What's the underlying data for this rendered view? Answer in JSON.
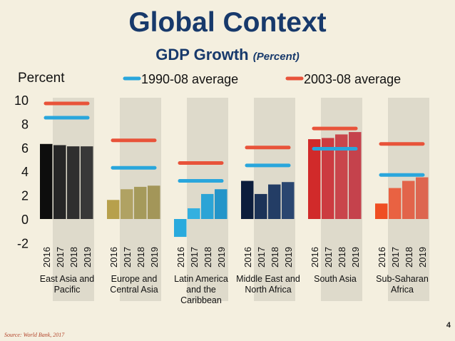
{
  "slide": {
    "title": "Global Context",
    "subtitle": "GDP Growth",
    "subtitle_unit": "(Percent)",
    "source": "Source: World Bank, 2017",
    "page_number": "4"
  },
  "chart_data": {
    "type": "bar",
    "title": "GDP Growth",
    "ylabel": "Percent",
    "ylim": [
      -2,
      10
    ],
    "yticks": [
      -2,
      0,
      2,
      4,
      6,
      8,
      10
    ],
    "years": [
      "2016",
      "2017",
      "2018",
      "2019"
    ],
    "legend": [
      {
        "name": "1990-08 average",
        "color": "#29a6dc"
      },
      {
        "name": "2003-08 average",
        "color": "#e8533a"
      }
    ],
    "legend_position": "top",
    "groups": [
      {
        "name": "East Asia and Pacific",
        "label_lines": [
          "East Asia and",
          "Pacific"
        ],
        "values": [
          6.3,
          6.2,
          6.1,
          6.1
        ],
        "avg_1990_08": 8.5,
        "avg_2003_08": 9.7,
        "colors": [
          "#0d0d0d",
          "#262626",
          "#2f2f2f",
          "#383838"
        ]
      },
      {
        "name": "Europe and Central Asia",
        "label_lines": [
          "Europe and",
          "Central Asia"
        ],
        "values": [
          1.6,
          2.5,
          2.7,
          2.8
        ],
        "avg_1990_08": 4.3,
        "avg_2003_08": 6.6,
        "colors": [
          "#b7a04c",
          "#b0a263",
          "#a59a5b",
          "#a39659"
        ]
      },
      {
        "name": "Latin America and the Caribbean",
        "label_lines": [
          "Latin America",
          "and the",
          "Caribbean"
        ],
        "values": [
          -1.5,
          0.9,
          2.1,
          2.5
        ],
        "avg_1990_08": 3.2,
        "avg_2003_08": 4.7,
        "colors": [
          "#29aadd",
          "#33b0e0",
          "#2ba4d6",
          "#2495c9"
        ]
      },
      {
        "name": "Middle East and North Africa",
        "label_lines": [
          "Middle East and",
          "North Africa"
        ],
        "values": [
          3.2,
          2.1,
          2.9,
          3.1
        ],
        "avg_1990_08": 4.5,
        "avg_2003_08": 6.0,
        "colors": [
          "#0c1d3c",
          "#1c3358",
          "#233d65",
          "#2a4670"
        ]
      },
      {
        "name": "South Asia",
        "label_lines": [
          "South Asia"
        ],
        "values": [
          6.7,
          6.8,
          7.1,
          7.3
        ],
        "avg_1990_08": 5.9,
        "avg_2003_08": 7.6,
        "colors": [
          "#d12a2a",
          "#cc3b40",
          "#c9454b",
          "#c5424c"
        ]
      },
      {
        "name": "Sub-Saharan Africa",
        "label_lines": [
          "Sub-Saharan",
          "Africa"
        ],
        "values": [
          1.3,
          2.6,
          3.2,
          3.5
        ],
        "avg_1990_08": 3.7,
        "avg_2003_08": 6.3,
        "colors": [
          "#ef4e23",
          "#e96242",
          "#e2644a",
          "#dd6650"
        ]
      }
    ]
  }
}
